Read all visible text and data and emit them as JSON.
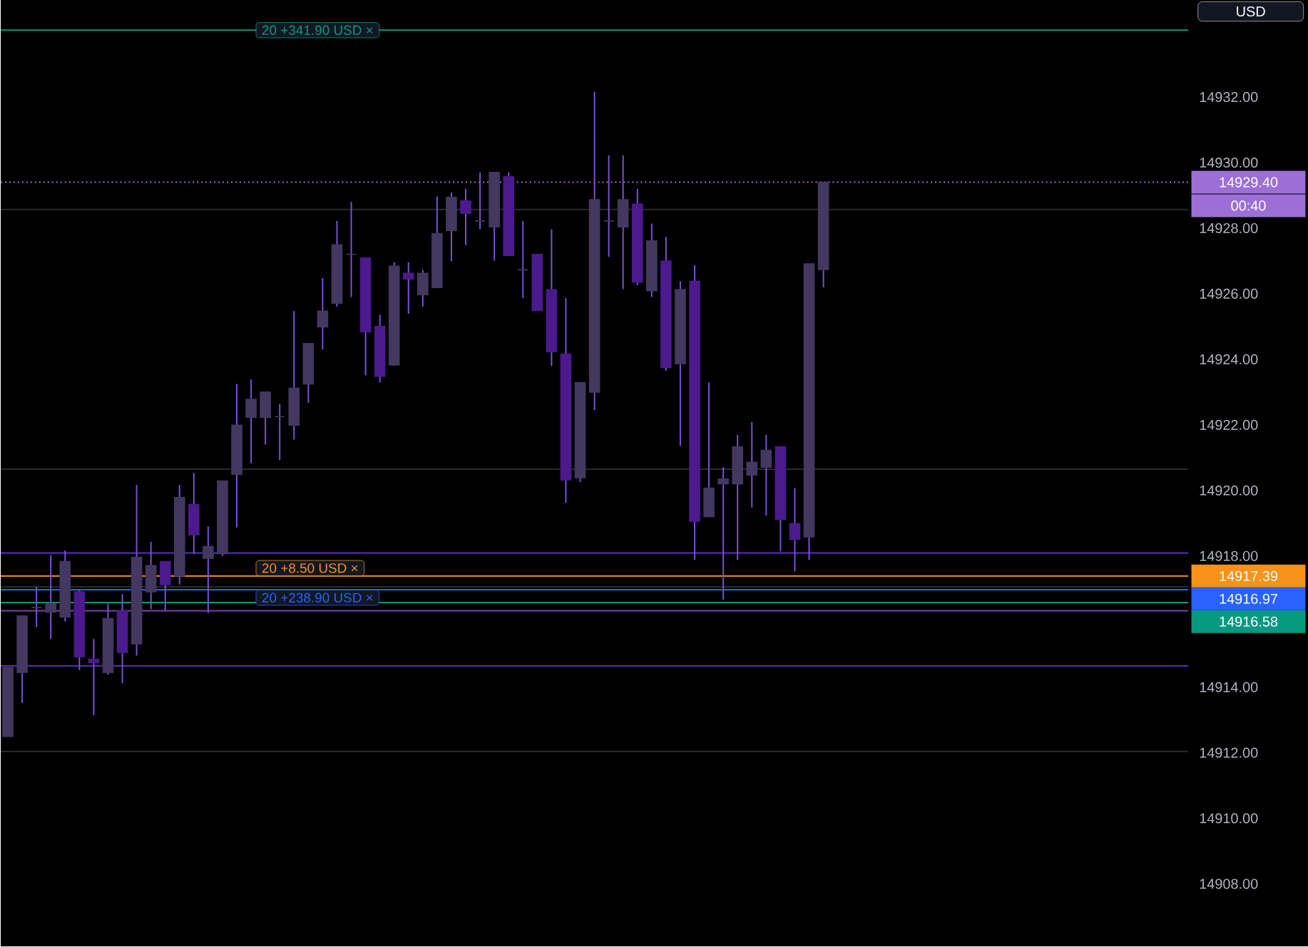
{
  "chart_data": {
    "type": "candlestick",
    "categories": [
      null,
      null,
      null,
      null,
      null,
      null,
      null,
      null,
      null,
      null,
      null,
      null,
      null,
      null,
      null,
      null,
      null,
      null,
      null,
      null,
      null,
      null,
      null,
      null,
      null,
      null,
      null,
      null,
      null,
      null,
      null,
      null,
      null,
      null,
      null,
      null,
      null,
      null,
      null,
      null,
      null,
      null,
      null,
      null,
      null,
      null,
      null,
      null,
      null,
      null,
      null,
      null,
      null,
      null,
      null,
      null,
      null,
      null,
      null,
      null,
      null,
      null,
      null,
      null,
      null,
      null,
      null,
      null,
      null,
      null,
      null,
      null,
      null,
      null,
      null,
      null,
      null,
      null,
      null,
      null,
      null,
      null,
      null
    ],
    "ohlc": [
      [
        14912.5,
        14914.6,
        14912.5,
        14914.6
      ],
      [
        14914.45,
        14916.17,
        14913.52,
        14916.17
      ],
      [
        14916.43,
        14917.06,
        14915.83,
        14916.43
      ],
      [
        14916.29,
        14918.03,
        14915.47,
        14916.55
      ],
      [
        14916.14,
        14918.17,
        14916.0,
        14917.83
      ],
      [
        14916.91,
        14916.96,
        14914.52,
        14914.93
      ],
      [
        14914.85,
        14915.47,
        14913.14,
        14914.75
      ],
      [
        14914.45,
        14916.55,
        14914.38,
        14916.09
      ],
      [
        14916.33,
        14916.84,
        14914.12,
        14915.06
      ],
      [
        14915.32,
        14920.17,
        14914.96,
        14917.96
      ],
      [
        14916.91,
        14918.43,
        14916.38,
        14917.71
      ],
      [
        14917.83,
        14917.83,
        14916.33,
        14917.13
      ],
      [
        14917.39,
        14920.17,
        14917.13,
        14919.78
      ],
      [
        14919.57,
        14920.53,
        14918.07,
        14918.65
      ],
      [
        14917.93,
        14918.9,
        14916.26,
        14918.29
      ],
      [
        14918.07,
        14920.29,
        14918.0,
        14920.29
      ],
      [
        14920.49,
        14923.25,
        14918.87,
        14921.99
      ],
      [
        14922.23,
        14923.39,
        14920.83,
        14922.78
      ],
      [
        14922.23,
        14923.0,
        14921.4,
        14923.0
      ],
      [
        14922.25,
        14922.64,
        14920.93,
        14922.25
      ],
      [
        14921.99,
        14925.47,
        14921.55,
        14923.12
      ],
      [
        14923.25,
        14924.48,
        14922.67,
        14924.48
      ],
      [
        14924.99,
        14926.48,
        14924.3,
        14925.47
      ],
      [
        14925.71,
        14928.22,
        14925.61,
        14927.49
      ],
      [
        14927.2,
        14928.8,
        14925.9,
        14927.2
      ],
      [
        14927.09,
        14927.09,
        14923.51,
        14924.84
      ],
      [
        14925.0,
        14925.36,
        14923.29,
        14923.48
      ],
      [
        14923.83,
        14926.96,
        14923.8,
        14926.84
      ],
      [
        14926.62,
        14926.96,
        14925.39,
        14926.45
      ],
      [
        14925.97,
        14926.73,
        14925.61,
        14926.62
      ],
      [
        14926.19,
        14928.97,
        14926.19,
        14927.83
      ],
      [
        14927.93,
        14929.09,
        14926.99,
        14928.94
      ],
      [
        14928.83,
        14929.2,
        14927.49,
        14928.45
      ],
      [
        14928.22,
        14929.7,
        14927.97,
        14928.22
      ],
      [
        14928.04,
        14929.7,
        14927.01,
        14929.7
      ],
      [
        14929.57,
        14929.7,
        14927.17,
        14927.17
      ],
      [
        14926.73,
        14928.22,
        14925.87,
        14926.73
      ],
      [
        14927.2,
        14927.2,
        14925.49,
        14925.49
      ],
      [
        14926.12,
        14927.96,
        14923.8,
        14924.23
      ],
      [
        14924.16,
        14925.87,
        14919.62,
        14920.32
      ],
      [
        14920.39,
        14923.29,
        14920.25,
        14923.29
      ],
      [
        14923.0,
        14932.16,
        14922.45,
        14928.87
      ],
      [
        14928.22,
        14930.22,
        14927.13,
        14928.22
      ],
      [
        14928.04,
        14930.22,
        14926.14,
        14928.87
      ],
      [
        14928.73,
        14929.2,
        14926.26,
        14926.36
      ],
      [
        14926.09,
        14928.14,
        14925.9,
        14927.61
      ],
      [
        14927.0,
        14927.74,
        14923.65,
        14923.75
      ],
      [
        14923.87,
        14926.38,
        14921.36,
        14926.13
      ],
      [
        14926.38,
        14926.87,
        14917.88,
        14919.06
      ],
      [
        14919.2,
        14923.29,
        14919.2,
        14920.07
      ],
      [
        14920.2,
        14920.71,
        14916.67,
        14920.35
      ],
      [
        14920.2,
        14921.7,
        14917.88,
        14921.33
      ],
      [
        14920.47,
        14922.09,
        14919.48,
        14920.86
      ],
      [
        14920.71,
        14921.7,
        14919.23,
        14921.22
      ],
      [
        14921.33,
        14921.33,
        14918.14,
        14919.12
      ],
      [
        14918.99,
        14920.07,
        14917.53,
        14918.51
      ],
      [
        14918.58,
        14926.91,
        14917.88,
        14926.91
      ],
      [
        14926.74,
        14929.4,
        14926.19,
        14929.4
      ],
      null,
      null,
      null,
      null,
      null,
      null,
      null,
      null,
      null,
      null,
      null,
      null,
      null,
      null,
      null,
      null,
      null,
      null,
      null,
      null,
      null,
      null,
      null,
      null,
      null
    ],
    "colors": [
      "#43385f",
      "#43385f",
      "#43385f",
      "#43385f",
      "#43385f",
      "#4b1a8c",
      "#4b1a8c",
      "#43385f",
      "#4b1a8c",
      "#43385f",
      "#43385f",
      "#4b1a8c",
      "#43385f",
      "#4b1a8c",
      "#43385f",
      "#43385f",
      "#43385f",
      "#43385f",
      "#43385f",
      "#43385f",
      "#43385f",
      "#43385f",
      "#43385f",
      "#43385f",
      "#43385f",
      "#4b1a8c",
      "#4b1a8c",
      "#43385f",
      "#4b1a8c",
      "#43385f",
      "#43385f",
      "#43385f",
      "#4b1a8c",
      "#43385f",
      "#43385f",
      "#4b1a8c",
      "#43385f",
      "#4b1a8c",
      "#4b1a8c",
      "#4b1a8c",
      "#43385f",
      "#43385f",
      "#43385f",
      "#43385f",
      "#4b1a8c",
      "#43385f",
      "#4b1a8c",
      "#43385f",
      "#4b1a8c",
      "#43385f",
      "#43385f",
      "#43385f",
      "#43385f",
      "#43385f",
      "#4b1a8c",
      "#4b1a8c",
      "#43385f",
      "#43385f",
      null,
      null,
      null,
      null,
      null,
      null,
      null,
      null,
      null,
      null,
      null,
      null,
      null,
      null,
      null,
      null,
      null,
      null,
      null,
      null,
      null,
      null,
      null,
      null,
      null
    ],
    "ylim": [
      14906.09,
      14934.96
    ],
    "yticks": [
      {
        "value": 14908,
        "label": "14908.00"
      },
      {
        "value": 14910,
        "label": "14910.00"
      },
      {
        "value": 14912,
        "label": "14912.00"
      },
      {
        "value": 14914,
        "label": "14914.00"
      },
      {
        "value": 14918,
        "label": "14918.00"
      },
      {
        "value": 14920,
        "label": "14920.00"
      },
      {
        "value": 14922,
        "label": "14922.00"
      },
      {
        "value": 14924,
        "label": "14924.00"
      },
      {
        "value": 14926,
        "label": "14926.00"
      },
      {
        "value": 14928,
        "label": "14928.00"
      },
      {
        "value": 14930,
        "label": "14930.00"
      },
      {
        "value": 14932,
        "label": "14932.00"
      }
    ],
    "tick_labels": "y",
    "ref_lines": [
      {
        "axis": "y",
        "value": 14934.04,
        "color": "#089981"
      },
      {
        "axis": "y",
        "value": 14929.4,
        "label": "14929.40",
        "color": "#9c6fd6",
        "line_style": "dotted"
      },
      {
        "axis": "y",
        "value": 14928.57,
        "color": "#2a2a2e"
      },
      {
        "axis": "y",
        "value": 14920.65,
        "color": "#2a2a2e"
      },
      {
        "axis": "y",
        "value": 14918.09,
        "color": "#5b2fc2"
      },
      {
        "axis": "y",
        "value": 14917.39,
        "label": "14917.39",
        "color": "#f7931a"
      },
      {
        "axis": "y",
        "value": 14917.06,
        "color": "#2a2a2e"
      },
      {
        "axis": "y",
        "value": 14916.97,
        "label": "14916.97",
        "color": "#2962ff"
      },
      {
        "axis": "y",
        "value": 14916.58,
        "label": "14916.58",
        "color": "#089981"
      },
      {
        "axis": "y",
        "value": 14916.33,
        "color": "#7b3fb0"
      },
      {
        "axis": "y",
        "value": 14914.65,
        "color": "#5b2fc2"
      },
      {
        "axis": "y",
        "value": 14912.04,
        "color": "#2a2a2e"
      }
    ],
    "annotations": [
      "USD",
      {
        "text": "20 +341.90 USD ×",
        "y": 14934.04
      },
      "00:40",
      {
        "text": "20 +8.50 USD ×",
        "y": 14917.39
      },
      {
        "text": "20 +238.90 USD ×",
        "y": 14916.97
      }
    ]
  }
}
